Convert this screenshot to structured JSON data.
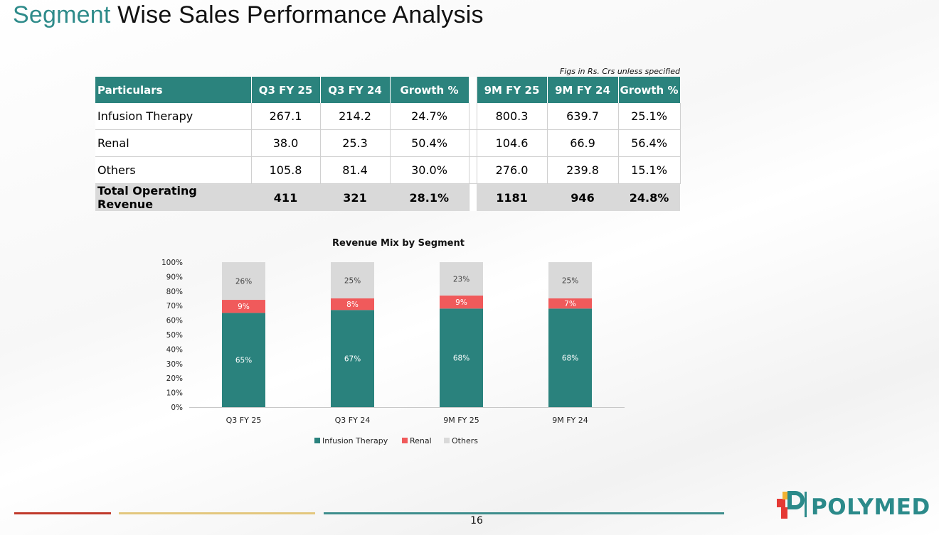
{
  "title": {
    "accent": "Segment",
    "rest": "Wise Sales Performance Analysis"
  },
  "note": "Figs in Rs. Crs unless specified",
  "table": {
    "headers": [
      "Particulars",
      "Q3 FY 25",
      "Q3 FY 24",
      "Growth %",
      "9M FY 25",
      "9M FY 24",
      "Growth %"
    ],
    "rows": [
      {
        "name": "Infusion Therapy",
        "values": [
          "267.1",
          "214.2",
          "24.7%",
          "800.3",
          "639.7",
          "25.1%"
        ]
      },
      {
        "name": "Renal",
        "values": [
          "38.0",
          "25.3",
          "50.4%",
          "104.6",
          "66.9",
          "56.4%"
        ]
      },
      {
        "name": "Others",
        "values": [
          "105.8",
          "81.4",
          "30.0%",
          "276.0",
          "239.8",
          "15.1%"
        ]
      }
    ],
    "total": {
      "name": "Total Operating Revenue",
      "values": [
        "411",
        "321",
        "28.1%",
        "1181",
        "946",
        "24.8%"
      ]
    }
  },
  "chart_data": {
    "type": "bar",
    "stacked": true,
    "title": "Revenue Mix by Segment",
    "categories": [
      "Q3 FY 25",
      "Q3 FY 24",
      "9M FY 25",
      "9M FY 24"
    ],
    "series": [
      {
        "name": "Infusion Therapy",
        "values": [
          65,
          67,
          68,
          68
        ],
        "color": "#2a827d"
      },
      {
        "name": "Renal",
        "values": [
          9,
          8,
          9,
          7
        ],
        "color": "#f05a5b"
      },
      {
        "name": "Others",
        "values": [
          26,
          25,
          23,
          25
        ],
        "color": "#d9d9d9"
      }
    ],
    "ylim": [
      0,
      100
    ],
    "yticks": [
      "0%",
      "10%",
      "20%",
      "30%",
      "40%",
      "50%",
      "60%",
      "70%",
      "80%",
      "90%",
      "100%"
    ],
    "unit": "%",
    "legend": "bottom",
    "grid": false
  },
  "footer": {
    "page": "16",
    "line_colors": [
      "#c0392b",
      "#e3c77e",
      "#3d8d8c"
    ]
  },
  "logo": {
    "text": "POLYMED",
    "color": "#2b8a8a",
    "accent": "#e53935",
    "accent2": "#f2b233"
  }
}
